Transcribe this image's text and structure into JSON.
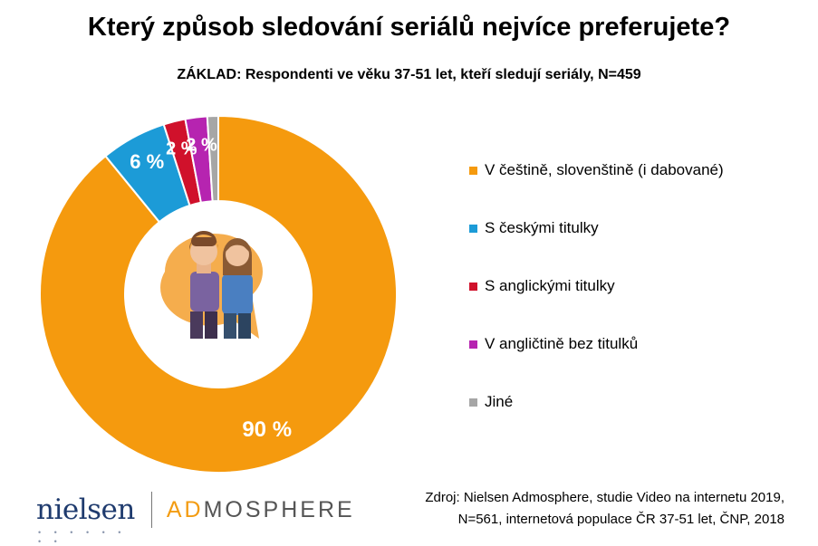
{
  "title": "Který způsob sledování seriálů nejvíce preferujete?",
  "subtitle": "ZÁKLAD: Respondenti ve věku 37-51 let, kteří sledují seriály, N=459",
  "chart_data": {
    "type": "pie",
    "donut": true,
    "categories": [
      "V češtině, slovenštině (i dabované)",
      "S českými titulky",
      "S anglickými titulky",
      "V angličtině bez titulků",
      "Jiné"
    ],
    "values": [
      90,
      6,
      2,
      2,
      1
    ],
    "labels": [
      "90 %",
      "6 %",
      "2 %",
      "2 %",
      ""
    ],
    "colors": [
      "#f59a0e",
      "#1c9bd7",
      "#d0112b",
      "#b624b0",
      "#a6a6a6"
    ],
    "legend_position": "right"
  },
  "logos": {
    "nielsen": "nielsen",
    "nielsen_dots": "• • • • • • • •",
    "admosphere_ad": "AD",
    "admosphere_rest": "MOSPHERE"
  },
  "source": {
    "line1": "Zdroj: Nielsen Admosphere, studie Video na internetu 2019,",
    "line2": "N=561, internetová populace ČR 37-51 let, ČNP, 2018"
  },
  "icon": "two-people-icon"
}
